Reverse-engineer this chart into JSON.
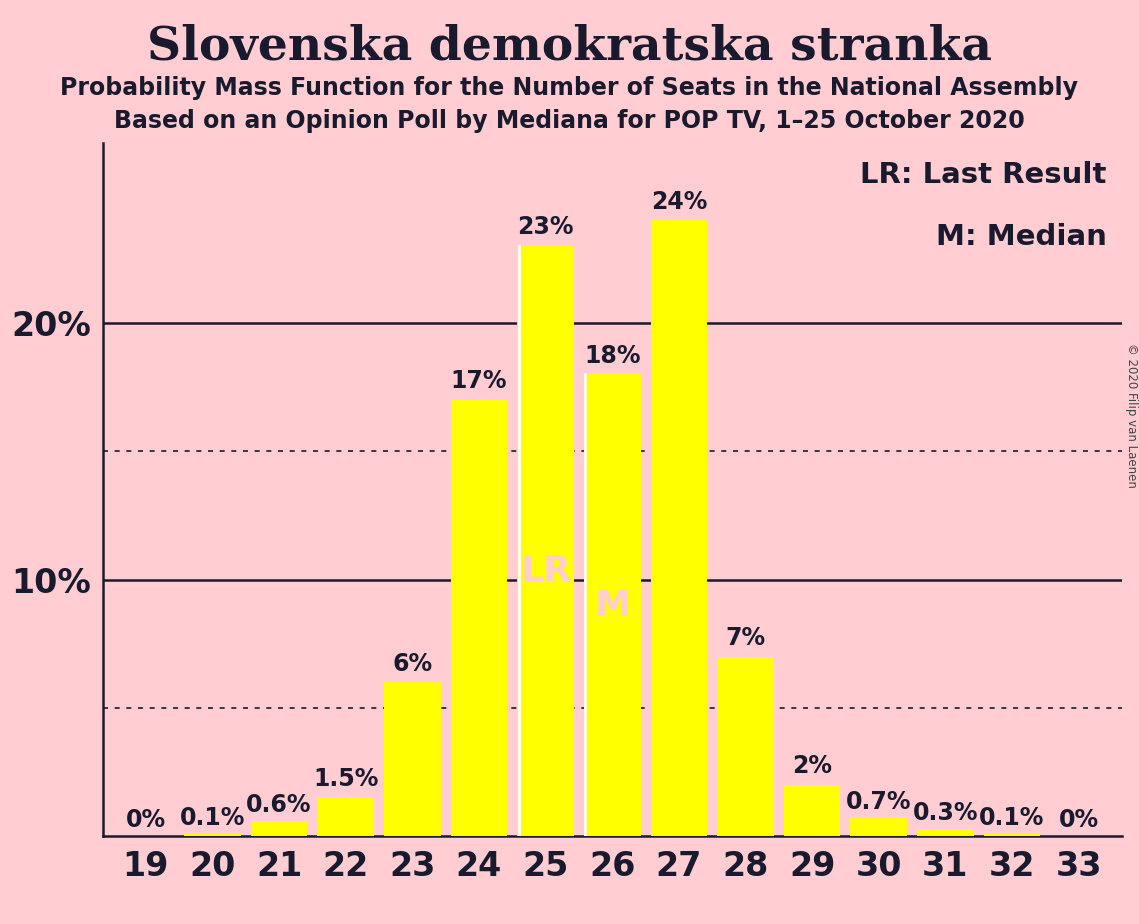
{
  "title": "Slovenska demokratska stranka",
  "subtitle1": "Probability Mass Function for the Number of Seats in the National Assembly",
  "subtitle2": "Based on an Opinion Poll by Mediana for POP TV, 1–25 October 2020",
  "copyright": "© 2020 Filip van Laenen",
  "seats": [
    19,
    20,
    21,
    22,
    23,
    24,
    25,
    26,
    27,
    28,
    29,
    30,
    31,
    32,
    33
  ],
  "probabilities": [
    0.0,
    0.1,
    0.6,
    1.5,
    6.0,
    17.0,
    23.0,
    18.0,
    24.0,
    7.0,
    2.0,
    0.7,
    0.3,
    0.1,
    0.0
  ],
  "labels": [
    "0%",
    "0.1%",
    "0.6%",
    "1.5%",
    "6%",
    "17%",
    "23%",
    "18%",
    "24%",
    "7%",
    "2%",
    "0.7%",
    "0.3%",
    "0.1%",
    "0%"
  ],
  "bar_color": "#FFFF00",
  "background_color": "#FFCDD2",
  "text_color": "#1a1a2e",
  "label_color_inside": "#FFCDD2",
  "last_result_seat": 25,
  "median_seat": 26,
  "lr_label": "LR",
  "m_label": "M",
  "legend_lr": "LR: Last Result",
  "legend_m": "M: Median",
  "solid_lines": [
    10.0,
    20.0
  ],
  "dotted_lines": [
    5.0,
    15.0
  ],
  "ylim": [
    0,
    27
  ],
  "bar_width": 0.85,
  "title_fontsize": 34,
  "subtitle_fontsize": 17,
  "tick_fontsize": 24,
  "label_fontsize": 17,
  "legend_fontsize": 21,
  "lr_m_fontsize": 26
}
